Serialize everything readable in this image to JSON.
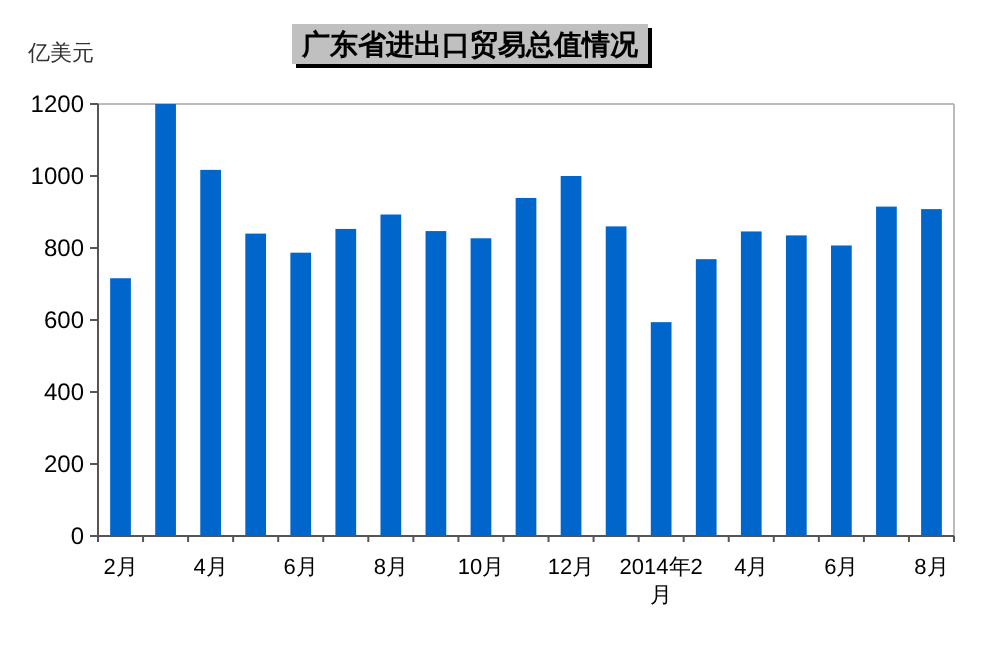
{
  "chart_data": {
    "type": "bar",
    "title": "广东省进出口贸易总值情况",
    "ylabel": "亿美元",
    "categories": [
      "2月",
      null,
      "4月",
      null,
      "6月",
      null,
      "8月",
      null,
      "10月",
      null,
      "12月",
      null,
      "2014年2月",
      null,
      "4月",
      null,
      "6月",
      null,
      "8月"
    ],
    "values": [
      716,
      1200,
      1017,
      840,
      787,
      853,
      893,
      847,
      827,
      939,
      1000,
      860,
      594,
      769,
      846,
      835,
      807,
      915,
      908
    ],
    "color": "#0066cc",
    "ylim": [
      0,
      1200
    ],
    "yticks": [
      0,
      200,
      400,
      600,
      800,
      1000,
      1200
    ],
    "grid": false
  }
}
